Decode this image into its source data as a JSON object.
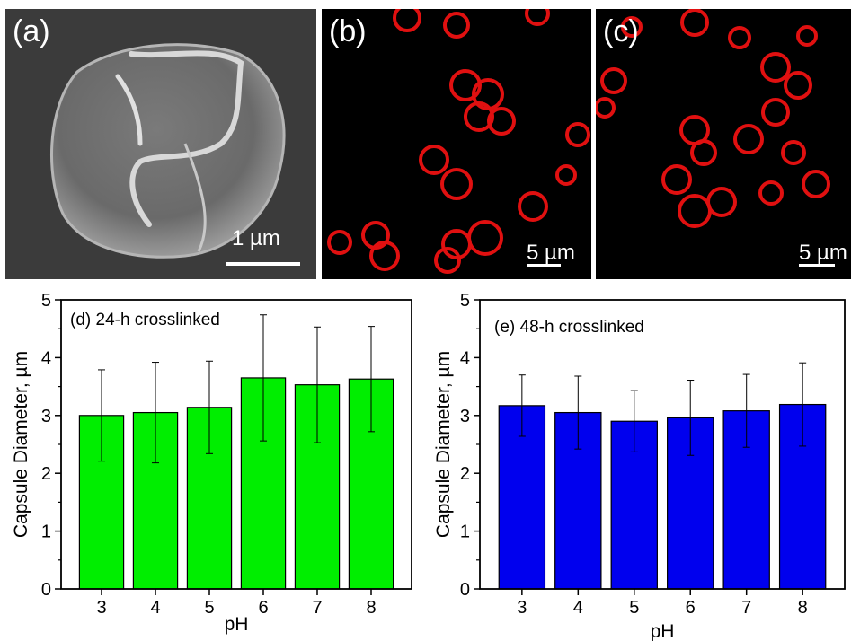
{
  "panels": {
    "a": {
      "label": "(a)",
      "scale": "1 µm"
    },
    "b": {
      "label": "(b)",
      "scale": "5 µm"
    },
    "c": {
      "label": "(c)",
      "scale": "5 µm"
    }
  },
  "chart_data": [
    {
      "type": "bar",
      "annotation": "(d) 24-h crosslinked",
      "xlabel": "pH",
      "ylabel": "Capsule Diameter, µm",
      "categories": [
        "3",
        "4",
        "5",
        "6",
        "7",
        "8"
      ],
      "values": [
        3.0,
        3.05,
        3.14,
        3.65,
        3.53,
        3.63
      ],
      "errors": [
        0.79,
        0.87,
        0.8,
        1.09,
        1.0,
        0.91
      ],
      "ylim": [
        0,
        5
      ],
      "yticks": [
        0,
        1,
        2,
        3,
        4,
        5
      ],
      "color": "#00ee00"
    },
    {
      "type": "bar",
      "annotation": "(e) 48-h crosslinked",
      "xlabel": "pH",
      "ylabel": "Capsule Diameter, µm",
      "categories": [
        "3",
        "4",
        "5",
        "6",
        "7",
        "8"
      ],
      "values": [
        3.17,
        3.05,
        2.9,
        2.96,
        3.08,
        3.19
      ],
      "errors": [
        0.53,
        0.63,
        0.53,
        0.65,
        0.63,
        0.72
      ],
      "ylim": [
        0,
        5
      ],
      "yticks": [
        0,
        1,
        2,
        3,
        4,
        5
      ],
      "color": "#0000ee"
    }
  ]
}
